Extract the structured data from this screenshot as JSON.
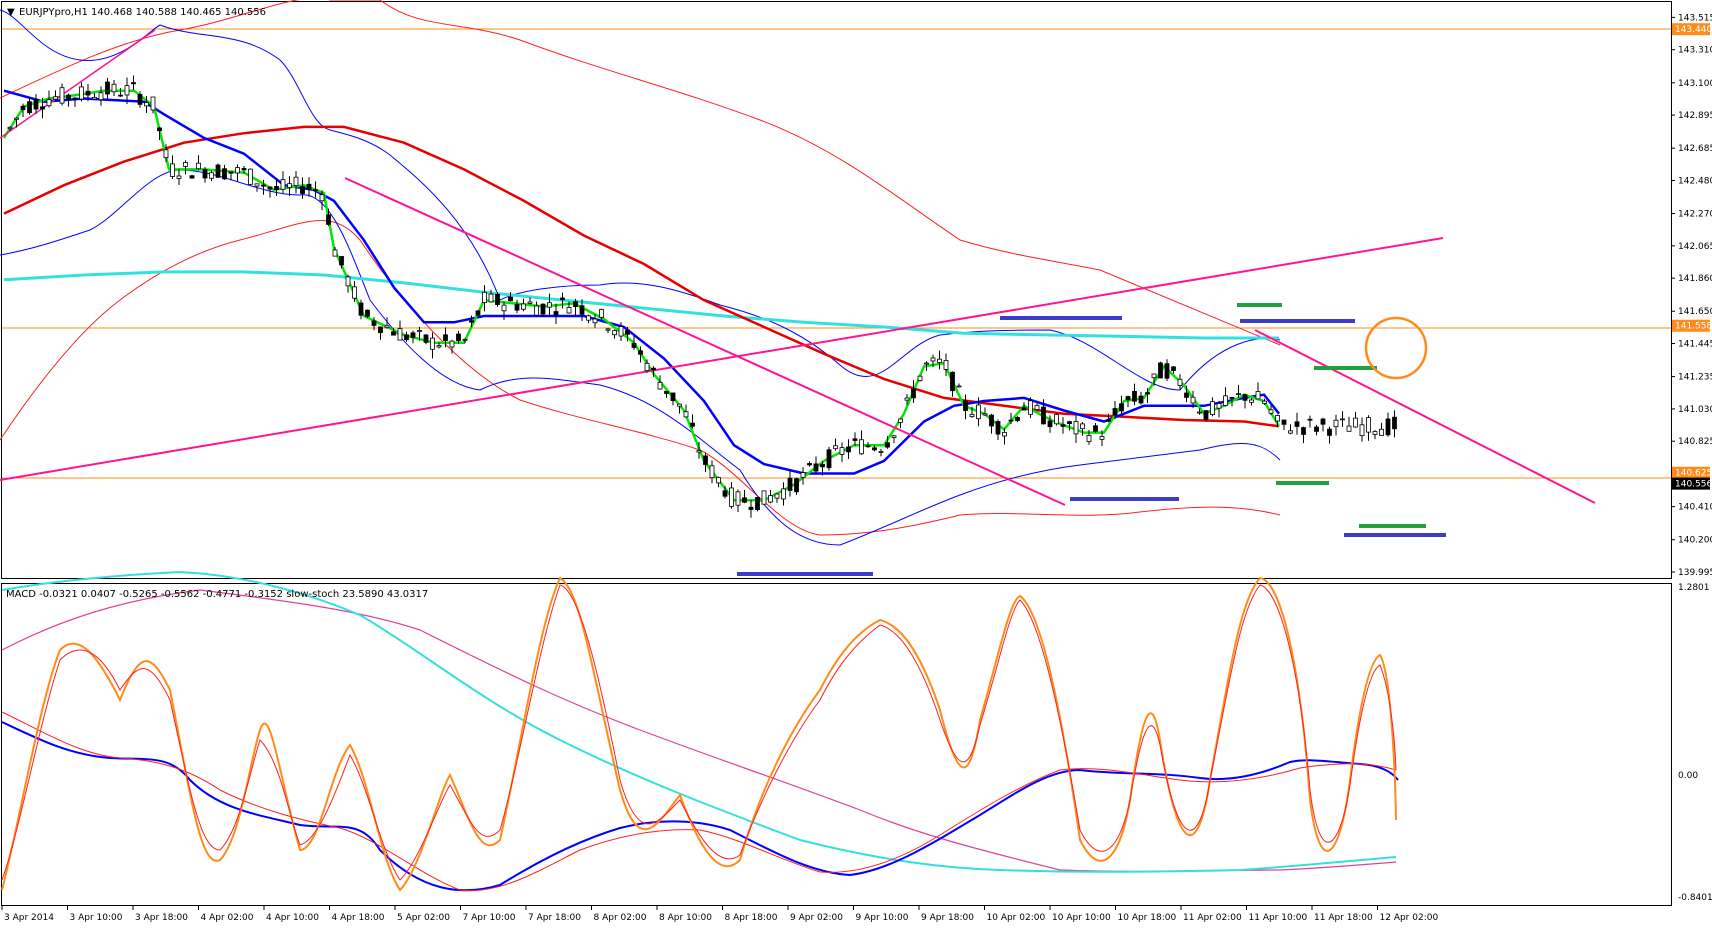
{
  "main_panel": {
    "header": "EURJPYpro,H1  140.468 140.588 140.465 140.556",
    "y_ticks": [
      "143.515",
      "143.310",
      "143.100",
      "142.895",
      "142.685",
      "142.480",
      "142.270",
      "142.065",
      "141.860",
      "141.650",
      "141.445",
      "141.235",
      "141.030",
      "140.825",
      "140.410",
      "140.200",
      "139.995"
    ],
    "price_tags": [
      {
        "label": "143.440",
        "value": 143.44,
        "color": "#ff8c1a"
      },
      {
        "label": "141.558",
        "value": 141.558,
        "color": "#ff8c1a"
      },
      {
        "label": "140.625",
        "value": 140.625,
        "color": "#ff8c1a"
      },
      {
        "label": "140.556",
        "value": 140.556,
        "color": "#000000"
      }
    ]
  },
  "sub_panel": {
    "header": "MACD -0.0321 0.0407 -0.5265 -0.5562 -0.4771 -0.3152  slow-stoch 23.5890 43.0317",
    "y_ticks": [
      "1.2801",
      "0.00",
      "-0.8401"
    ]
  },
  "time_axis": {
    "labels": [
      "3 Apr 2014",
      "3 Apr 10:00",
      "3 Apr 18:00",
      "4 Apr 02:00",
      "4 Apr 10:00",
      "4 Apr 18:00",
      "5 Apr 02:00",
      "7 Apr 10:00",
      "7 Apr 18:00",
      "8 Apr 02:00",
      "8 Apr 10:00",
      "8 Apr 18:00",
      "9 Apr 02:00",
      "9 Apr 10:00",
      "9 Apr 18:00",
      "10 Apr 02:00",
      "10 Apr 10:00",
      "10 Apr 18:00",
      "11 Apr 02:00",
      "11 Apr 10:00",
      "11 Apr 18:00",
      "12 Apr 02:00"
    ]
  },
  "colors": {
    "bull_candle": "#ffffff",
    "bear_candle": "#000000",
    "ma_fast": "#00e600",
    "ma_mid": "#0000ff",
    "ma_slow": "#e60000",
    "ma_long": "#33e0e0",
    "bands": "#ff2020",
    "bands_inner": "#0000ff",
    "trendline": "#ff1493",
    "stoch": "#ff8c1a",
    "accent_circle": "#ff8c1a",
    "level_blue": "#3c3cc8",
    "level_green": "#20a040"
  },
  "chart_data": {
    "type": "line",
    "symbol": "EURJPYpro",
    "timeframe": "H1",
    "ohlc_last": {
      "open": 140.468,
      "high": 140.588,
      "low": 140.465,
      "close": 140.556
    },
    "ylim": [
      139.995,
      143.6
    ],
    "x_range": [
      "3 Apr 2014",
      "12 Apr 02:00"
    ],
    "series": [
      {
        "values": [
          [
            0,
            142.75
          ],
          [
            20,
            142.95
          ],
          [
            45,
            143.0
          ],
          [
            70,
            143.02
          ],
          [
            100,
            143.05
          ],
          [
            130,
            143.05
          ],
          [
            150,
            142.95
          ],
          [
            165,
            142.55
          ],
          [
            200,
            142.55
          ],
          [
            240,
            142.53
          ],
          [
            270,
            142.42
          ],
          [
            300,
            142.45
          ],
          [
            320,
            142.4
          ],
          [
            330,
            142.05
          ],
          [
            360,
            141.62
          ],
          [
            400,
            141.5
          ],
          [
            430,
            141.45
          ],
          [
            460,
            141.45
          ],
          [
            480,
            141.72
          ],
          [
            510,
            141.7
          ],
          [
            540,
            141.68
          ],
          [
            570,
            141.7
          ],
          [
            600,
            141.6
          ],
          [
            630,
            141.45
          ],
          [
            650,
            141.25
          ],
          [
            680,
            141.02
          ],
          [
            700,
            140.7
          ],
          [
            730,
            140.45
          ],
          [
            760,
            140.45
          ],
          [
            790,
            140.55
          ],
          [
            820,
            140.7
          ],
          [
            850,
            140.8
          ],
          [
            880,
            140.8
          ],
          [
            900,
            141.0
          ],
          [
            920,
            141.3
          ],
          [
            940,
            141.32
          ],
          [
            960,
            141.05
          ],
          [
            980,
            141.0
          ],
          [
            1000,
            140.9
          ],
          [
            1020,
            141.05
          ],
          [
            1050,
            140.95
          ],
          [
            1080,
            140.88
          ],
          [
            1100,
            140.88
          ],
          [
            1120,
            141.08
          ],
          [
            1140,
            141.1
          ],
          [
            1160,
            141.3
          ],
          [
            1180,
            141.18
          ],
          [
            1200,
            141.0
          ],
          [
            1220,
            141.05
          ],
          [
            1240,
            141.12
          ],
          [
            1260,
            141.08
          ],
          [
            1275,
            140.92
          ]
        ]
      },
      {
        "values": [
          [
            0,
            143.05
          ],
          [
            40,
            142.98
          ],
          [
            80,
            143.0
          ],
          [
            140,
            142.98
          ],
          [
            160,
            142.9
          ],
          [
            200,
            142.75
          ],
          [
            240,
            142.65
          ],
          [
            280,
            142.45
          ],
          [
            310,
            142.42
          ],
          [
            330,
            142.35
          ],
          [
            360,
            142.1
          ],
          [
            390,
            141.8
          ],
          [
            420,
            141.58
          ],
          [
            450,
            141.58
          ],
          [
            480,
            141.62
          ],
          [
            510,
            141.62
          ],
          [
            540,
            141.62
          ],
          [
            580,
            141.62
          ],
          [
            620,
            141.55
          ],
          [
            660,
            141.35
          ],
          [
            700,
            141.08
          ],
          [
            730,
            140.8
          ],
          [
            760,
            140.68
          ],
          [
            800,
            140.62
          ],
          [
            850,
            140.62
          ],
          [
            880,
            140.7
          ],
          [
            920,
            140.95
          ],
          [
            950,
            141.05
          ],
          [
            980,
            141.08
          ],
          [
            1020,
            141.1
          ],
          [
            1060,
            141.02
          ],
          [
            1100,
            140.95
          ],
          [
            1140,
            141.05
          ],
          [
            1180,
            141.05
          ],
          [
            1200,
            141.05
          ],
          [
            1240,
            141.1
          ],
          [
            1260,
            141.12
          ],
          [
            1275,
            141.0
          ]
        ]
      },
      {
        "values": [
          [
            0,
            142.27
          ],
          [
            60,
            142.45
          ],
          [
            120,
            142.6
          ],
          [
            180,
            142.72
          ],
          [
            240,
            142.78
          ],
          [
            300,
            142.82
          ],
          [
            340,
            142.82
          ],
          [
            400,
            142.72
          ],
          [
            460,
            142.55
          ],
          [
            520,
            142.35
          ],
          [
            580,
            142.13
          ],
          [
            640,
            141.95
          ],
          [
            700,
            141.72
          ],
          [
            760,
            141.55
          ],
          [
            820,
            141.38
          ],
          [
            880,
            141.22
          ],
          [
            940,
            141.1
          ],
          [
            1000,
            141.05
          ],
          [
            1060,
            141.0
          ],
          [
            1120,
            140.98
          ],
          [
            1180,
            140.96
          ],
          [
            1240,
            140.95
          ],
          [
            1275,
            140.92
          ]
        ]
      },
      {
        "values": [
          [
            0,
            141.85
          ],
          [
            80,
            141.88
          ],
          [
            160,
            141.9
          ],
          [
            240,
            141.9
          ],
          [
            320,
            141.88
          ],
          [
            400,
            141.83
          ],
          [
            480,
            141.77
          ],
          [
            560,
            141.72
          ],
          [
            640,
            141.67
          ],
          [
            720,
            141.62
          ],
          [
            800,
            141.58
          ],
          [
            880,
            141.55
          ],
          [
            960,
            141.51
          ],
          [
            1040,
            141.5
          ],
          [
            1120,
            141.49
          ],
          [
            1200,
            141.48
          ],
          [
            1275,
            141.48
          ]
        ]
      }
    ]
  }
}
